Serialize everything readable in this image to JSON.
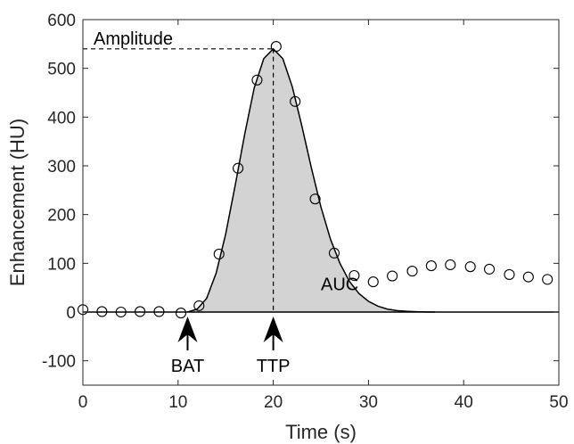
{
  "chart_data": {
    "type": "line",
    "title": "",
    "xlabel": "Time (s)",
    "ylabel": "Enhancement (HU)",
    "xlim": [
      0,
      50
    ],
    "ylim": [
      -150,
      600
    ],
    "x_ticks": [
      0,
      10,
      20,
      30,
      40,
      50
    ],
    "y_ticks": [
      -100,
      0,
      100,
      200,
      300,
      400,
      500,
      600
    ],
    "x_tick_labels": [
      "0",
      "10",
      "20",
      "30",
      "40",
      "50"
    ],
    "y_tick_labels": [
      "-100",
      "0",
      "100",
      "200",
      "300",
      "400",
      "500",
      "600"
    ],
    "grid": false,
    "series": [
      {
        "style": "markers",
        "marker": "open-circle",
        "points": [
          [
            0,
            5
          ],
          [
            2,
            1
          ],
          [
            4,
            0
          ],
          [
            6,
            1
          ],
          [
            8,
            1
          ],
          [
            10.3,
            -2
          ],
          [
            12.2,
            13
          ],
          [
            14.3,
            119
          ],
          [
            16.3,
            295
          ],
          [
            18.3,
            476
          ],
          [
            20.3,
            545
          ],
          [
            22.3,
            432
          ],
          [
            24.4,
            232
          ],
          [
            26.4,
            121
          ],
          [
            28.5,
            75
          ],
          [
            30.5,
            62
          ],
          [
            32.5,
            74
          ],
          [
            34.6,
            84
          ],
          [
            36.6,
            95
          ],
          [
            38.6,
            97
          ],
          [
            40.7,
            93
          ],
          [
            42.7,
            88
          ],
          [
            44.8,
            77
          ],
          [
            46.8,
            72
          ],
          [
            48.8,
            67
          ]
        ]
      },
      {
        "style": "line-filled",
        "fill_color": "#d3d3d3",
        "points": [
          [
            11,
            0
          ],
          [
            12,
            6
          ],
          [
            13,
            28
          ],
          [
            14,
            80
          ],
          [
            15,
            160
          ],
          [
            16,
            260
          ],
          [
            17,
            365
          ],
          [
            18,
            460
          ],
          [
            19,
            520
          ],
          [
            20,
            540
          ],
          [
            21,
            520
          ],
          [
            22,
            462
          ],
          [
            23,
            382
          ],
          [
            24,
            296
          ],
          [
            25,
            216
          ],
          [
            26,
            150
          ],
          [
            27,
            100
          ],
          [
            28,
            63
          ],
          [
            29,
            38
          ],
          [
            30,
            22
          ],
          [
            31,
            12
          ],
          [
            32,
            6
          ],
          [
            33,
            3
          ],
          [
            34,
            1.5
          ],
          [
            35,
            0.7
          ],
          [
            36,
            0.3
          ],
          [
            37,
            0
          ]
        ]
      }
    ],
    "baseline": 0,
    "annotations": {
      "amplitude": {
        "text": "Amplitude",
        "value": 540
      },
      "bat": {
        "text": "BAT",
        "x": 11
      },
      "ttp": {
        "text": "TTP",
        "x": 20
      },
      "auc": {
        "text": "AUC",
        "x": 25,
        "y": 45
      }
    },
    "colors": {
      "fill": "#d3d3d3",
      "line": "#000000",
      "axis": "#262626"
    }
  }
}
